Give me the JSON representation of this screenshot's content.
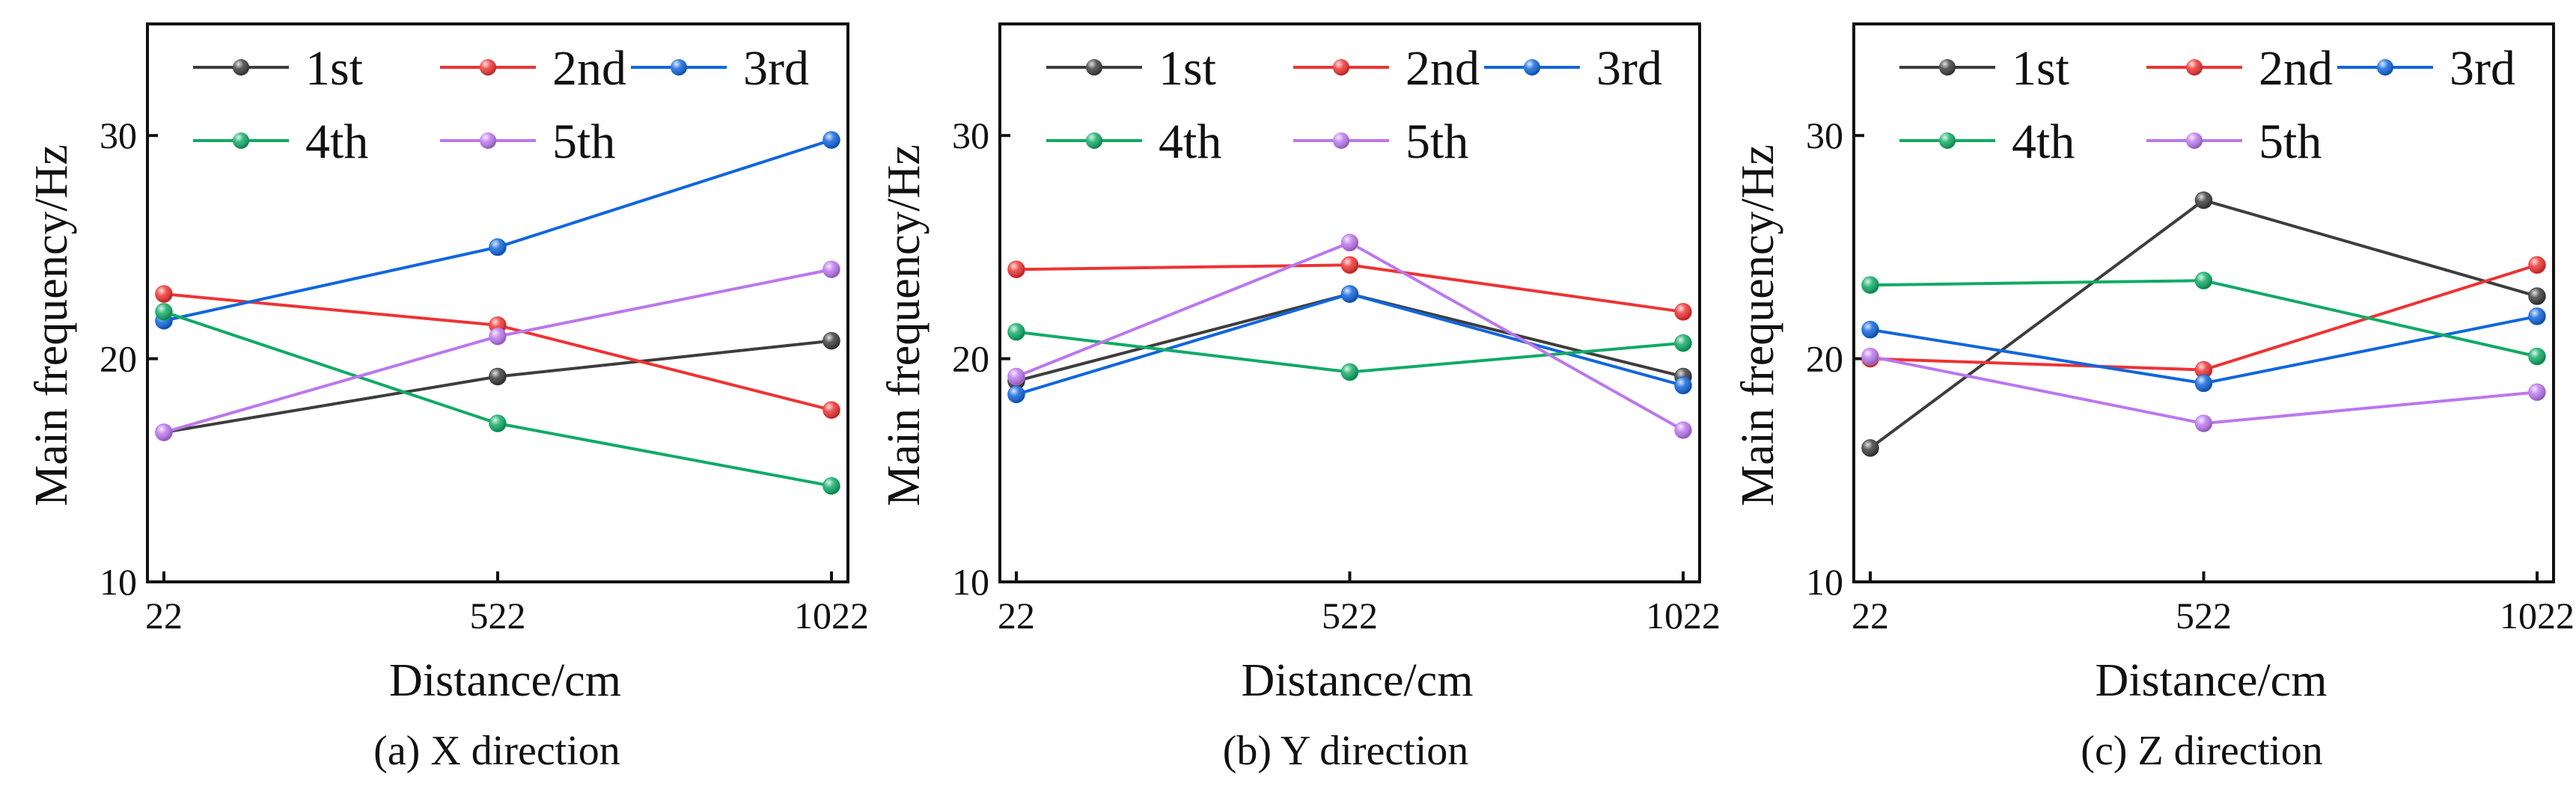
{
  "chart_data": [
    {
      "type": "line",
      "caption": "(a) X direction",
      "xlabel": "Distance/cm",
      "ylabel": "Main frequency/Hz",
      "categories": [
        "22",
        "522",
        "1022"
      ],
      "ylim": [
        10,
        35
      ],
      "yticks": [
        10,
        20,
        30
      ],
      "grid": false,
      "legend": "top",
      "series": [
        {
          "name": "1st",
          "color": "#3d3d3d",
          "values": [
            16.7,
            19.2,
            20.8
          ]
        },
        {
          "name": "2nd",
          "color": "#ee3333",
          "values": [
            22.9,
            21.5,
            17.7
          ]
        },
        {
          "name": "3rd",
          "color": "#1166dd",
          "values": [
            21.7,
            25.0,
            29.8
          ]
        },
        {
          "name": "4th",
          "color": "#11aa66",
          "values": [
            22.1,
            17.1,
            14.3
          ]
        },
        {
          "name": "5th",
          "color": "#bb77ee",
          "values": [
            16.7,
            21.0,
            24.0
          ]
        }
      ]
    },
    {
      "type": "line",
      "caption": "(b) Y direction",
      "xlabel": "Distance/cm",
      "ylabel": "Main frequency/Hz",
      "categories": [
        "22",
        "522",
        "1022"
      ],
      "ylim": [
        10,
        35
      ],
      "yticks": [
        10,
        20,
        30
      ],
      "grid": false,
      "legend": "top",
      "series": [
        {
          "name": "1st",
          "color": "#3d3d3d",
          "values": [
            19.0,
            22.9,
            19.2
          ]
        },
        {
          "name": "2nd",
          "color": "#ee3333",
          "values": [
            24.0,
            24.2,
            22.1
          ]
        },
        {
          "name": "3rd",
          "color": "#1166dd",
          "values": [
            18.4,
            22.9,
            18.8
          ]
        },
        {
          "name": "4th",
          "color": "#11aa66",
          "values": [
            21.2,
            19.4,
            20.7
          ]
        },
        {
          "name": "5th",
          "color": "#bb77ee",
          "values": [
            19.2,
            25.2,
            16.8
          ]
        }
      ]
    },
    {
      "type": "line",
      "caption": "(c) Z direction",
      "xlabel": "Distance/cm",
      "ylabel": "Main frequency/Hz",
      "categories": [
        "22",
        "522",
        "1022"
      ],
      "ylim": [
        10,
        35
      ],
      "yticks": [
        10,
        20,
        30
      ],
      "grid": false,
      "legend": "top",
      "series": [
        {
          "name": "1st",
          "color": "#3d3d3d",
          "values": [
            16.0,
            27.1,
            22.8
          ]
        },
        {
          "name": "2nd",
          "color": "#ee3333",
          "values": [
            20.0,
            19.5,
            24.2
          ]
        },
        {
          "name": "3rd",
          "color": "#1166dd",
          "values": [
            21.3,
            18.9,
            21.9
          ]
        },
        {
          "name": "4th",
          "color": "#11aa66",
          "values": [
            23.3,
            23.5,
            20.1
          ]
        },
        {
          "name": "5th",
          "color": "#bb77ee",
          "values": [
            20.1,
            17.1,
            18.5
          ]
        }
      ]
    }
  ]
}
